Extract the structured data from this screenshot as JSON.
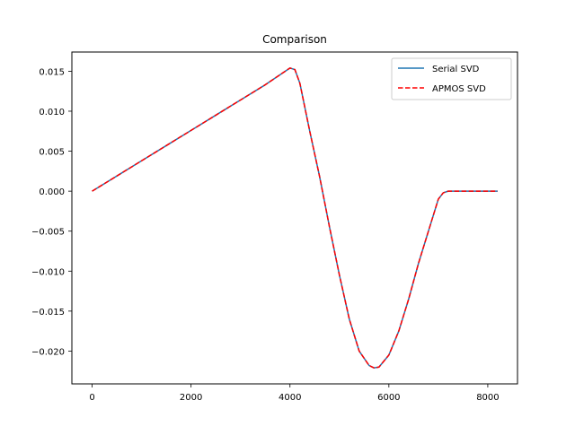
{
  "chart_data": {
    "type": "line",
    "title": "Comparison",
    "xlabel": "",
    "ylabel": "",
    "xlim": [
      -410,
      8601
    ],
    "ylim": [
      -0.0241,
      0.0174
    ],
    "xticks": [
      0,
      2000,
      4000,
      6000,
      8000
    ],
    "xtick_labels": [
      "0",
      "2000",
      "4000",
      "6000",
      "8000"
    ],
    "yticks": [
      0.015,
      0.01,
      0.005,
      0.0,
      -0.005,
      -0.01,
      -0.015,
      -0.02
    ],
    "ytick_labels": [
      "0.015",
      "0.010",
      "0.005",
      "0.000",
      "−0.005",
      "−0.010",
      "−0.015",
      "−0.020"
    ],
    "grid": false,
    "legend_position": "top-right",
    "series": [
      {
        "name": "Serial SVD",
        "color": "#1f77b4",
        "style": "solid",
        "x": [
          0,
          500,
          1000,
          1500,
          2000,
          2500,
          3000,
          3500,
          4000,
          4100,
          4200,
          4300,
          4400,
          4600,
          4800,
          5000,
          5200,
          5400,
          5600,
          5700,
          5800,
          6000,
          6200,
          6400,
          6600,
          6800,
          7000,
          7100,
          7200,
          7300,
          7600,
          8000,
          8200
        ],
        "y": [
          0.0,
          0.0019,
          0.0038,
          0.0057,
          0.0076,
          0.0095,
          0.0114,
          0.0133,
          0.0154,
          0.0152,
          0.0135,
          0.0105,
          0.0075,
          0.0018,
          -0.0045,
          -0.0105,
          -0.016,
          -0.02,
          -0.0218,
          -0.0221,
          -0.022,
          -0.0205,
          -0.0175,
          -0.0135,
          -0.009,
          -0.005,
          -0.001,
          -0.0002,
          0.0,
          0.0,
          0.0,
          0.0,
          0.0
        ]
      },
      {
        "name": "APMOS SVD",
        "color": "#ff0000",
        "style": "dashed",
        "x": [
          0,
          500,
          1000,
          1500,
          2000,
          2500,
          3000,
          3500,
          4000,
          4100,
          4200,
          4300,
          4400,
          4600,
          4800,
          5000,
          5200,
          5400,
          5600,
          5700,
          5800,
          6000,
          6200,
          6400,
          6600,
          6800,
          7000,
          7100,
          7200,
          7300,
          7600,
          8000,
          8200
        ],
        "y": [
          0.0,
          0.0019,
          0.0038,
          0.0057,
          0.0076,
          0.0095,
          0.0114,
          0.0133,
          0.0154,
          0.0152,
          0.0135,
          0.0105,
          0.0075,
          0.0018,
          -0.0045,
          -0.0105,
          -0.016,
          -0.02,
          -0.0218,
          -0.0221,
          -0.022,
          -0.0205,
          -0.0175,
          -0.0135,
          -0.009,
          -0.005,
          -0.001,
          -0.0002,
          0.0,
          0.0,
          0.0,
          0.0,
          0.0
        ]
      }
    ]
  }
}
